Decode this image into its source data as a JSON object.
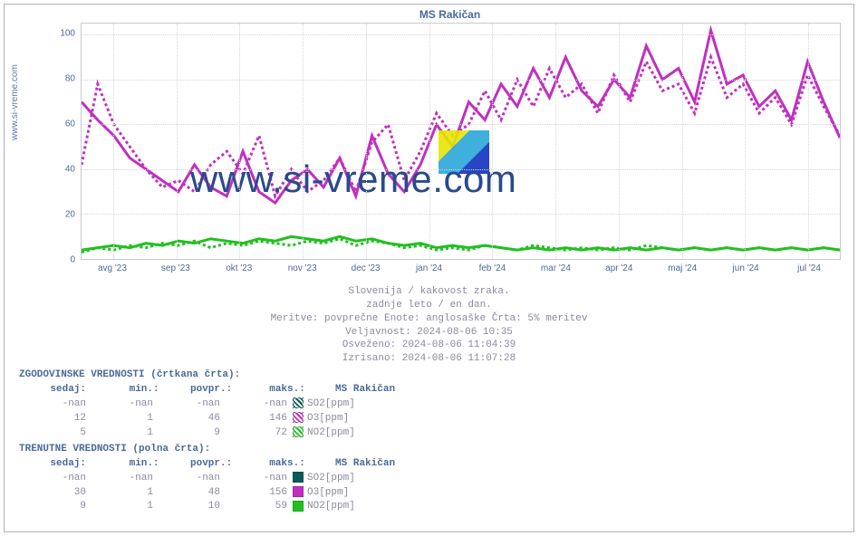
{
  "chart": {
    "title": "MS Rakičan",
    "ylabel_left": "www.si-vreme.com",
    "watermark_text": "www.si-vreme.com",
    "type": "line",
    "background_color": "#ffffff",
    "grid_color": "#d6d6e2",
    "axis_color": "#c8c8d4",
    "title_color": "#4a6a9a",
    "tick_color": "#4a6a9a",
    "tick_fontsize": 10,
    "title_fontsize": 12,
    "ylim": [
      0,
      105
    ],
    "yticks": [
      0,
      20,
      40,
      60,
      80,
      100
    ],
    "x_categories": [
      "avg '23",
      "sep '23",
      "okt '23",
      "nov '23",
      "dec '23",
      "jan '24",
      "feb '24",
      "mar '24",
      "apr '24",
      "maj '24",
      "jun '24",
      "jul '24"
    ],
    "series": [
      {
        "name": "O3_hist",
        "label": "O3[ppm] (history)",
        "color": "#c030c0",
        "style": "dashed",
        "line_width": 1,
        "values": [
          42,
          78,
          60,
          50,
          40,
          32,
          35,
          30,
          42,
          48,
          38,
          55,
          28,
          40,
          30,
          35,
          45,
          30,
          52,
          60,
          35,
          48,
          65,
          55,
          60,
          75,
          62,
          80,
          68,
          85,
          72,
          78,
          65,
          82,
          70,
          88,
          75,
          78,
          65,
          90,
          72,
          78,
          65,
          72,
          60,
          82,
          68,
          55
        ]
      },
      {
        "name": "O3_curr",
        "label": "O3[ppm] (current)",
        "color": "#c030c0",
        "style": "solid",
        "line_width": 1,
        "values": [
          70,
          62,
          55,
          45,
          40,
          35,
          30,
          42,
          32,
          28,
          48,
          30,
          25,
          35,
          40,
          32,
          45,
          28,
          55,
          38,
          30,
          42,
          60,
          50,
          70,
          62,
          78,
          68,
          85,
          72,
          90,
          75,
          68,
          80,
          72,
          95,
          80,
          85,
          70,
          102,
          78,
          82,
          68,
          75,
          62,
          88,
          70,
          54
        ]
      },
      {
        "name": "NO2_hist",
        "label": "NO2[ppm] (history)",
        "color": "#20c020",
        "style": "dashed",
        "line_width": 1,
        "values": [
          3,
          5,
          4,
          6,
          5,
          7,
          6,
          8,
          5,
          7,
          6,
          8,
          7,
          6,
          8,
          7,
          9,
          6,
          8,
          7,
          5,
          6,
          4,
          5,
          4,
          6,
          5,
          4,
          6,
          5,
          4,
          5,
          4,
          5,
          4,
          6,
          5,
          4,
          5,
          4,
          5,
          4,
          5,
          4,
          5,
          4,
          5,
          4
        ]
      },
      {
        "name": "NO2_curr",
        "label": "NO2[ppm] (current)",
        "color": "#20c020",
        "style": "solid",
        "line_width": 1,
        "values": [
          4,
          5,
          6,
          5,
          7,
          6,
          8,
          7,
          9,
          8,
          7,
          9,
          8,
          10,
          9,
          8,
          10,
          8,
          9,
          7,
          6,
          7,
          5,
          6,
          5,
          6,
          5,
          4,
          5,
          4,
          5,
          4,
          5,
          4,
          5,
          4,
          5,
          4,
          5,
          4,
          5,
          4,
          5,
          4,
          5,
          4,
          5,
          4
        ]
      }
    ]
  },
  "info": {
    "line1": "Slovenija / kakovost zraka.",
    "line2": "zadnje leto / en dan.",
    "line3": "Meritve: povprečne  Enote: anglosaške  Črta: 5% meritev",
    "line4": "Veljavnost: 2024-08-06 10:35",
    "line5": "Osveženo: 2024-08-06 11:04:39",
    "line6": "Izrisano: 2024-08-06 11:07:28"
  },
  "tables": {
    "hist_title": "ZGODOVINSKE VREDNOSTI (črtkana črta):",
    "curr_title": "TRENUTNE VREDNOSTI (polna črta):",
    "station_header": "MS Rakičan",
    "cols": {
      "sedaj": "sedaj:",
      "min": "min.:",
      "povpr": "povpr.:",
      "maks": "maks.:"
    },
    "hist_rows": [
      {
        "sedaj": "-nan",
        "min": "-nan",
        "povpr": "-nan",
        "maks": "-nan",
        "label": "SO2[ppm]",
        "swatch": "#0a5a5a",
        "swatch_pattern": "hist"
      },
      {
        "sedaj": "12",
        "min": "1",
        "povpr": "46",
        "maks": "146",
        "label": "O3[ppm]",
        "swatch": "#c030c0",
        "swatch_pattern": "hist"
      },
      {
        "sedaj": "5",
        "min": "1",
        "povpr": "9",
        "maks": "72",
        "label": "NO2[ppm]",
        "swatch": "#20c020",
        "swatch_pattern": "hist"
      }
    ],
    "curr_rows": [
      {
        "sedaj": "-nan",
        "min": "-nan",
        "povpr": "-nan",
        "maks": "-nan",
        "label": "SO2[ppm]",
        "swatch": "#0a5a5a",
        "swatch_pattern": "curr"
      },
      {
        "sedaj": "30",
        "min": "1",
        "povpr": "48",
        "maks": "156",
        "label": "O3[ppm]",
        "swatch": "#c030c0",
        "swatch_pattern": "curr"
      },
      {
        "sedaj": "9",
        "min": "1",
        "povpr": "10",
        "maks": "59",
        "label": "NO2[ppm]",
        "swatch": "#20c020",
        "swatch_pattern": "curr"
      }
    ]
  },
  "colors": {
    "header_text": "#4a6a9a",
    "body_text": "#8a8aa0",
    "so2": "#0a5a5a",
    "o3": "#c030c0",
    "no2": "#20c020"
  }
}
